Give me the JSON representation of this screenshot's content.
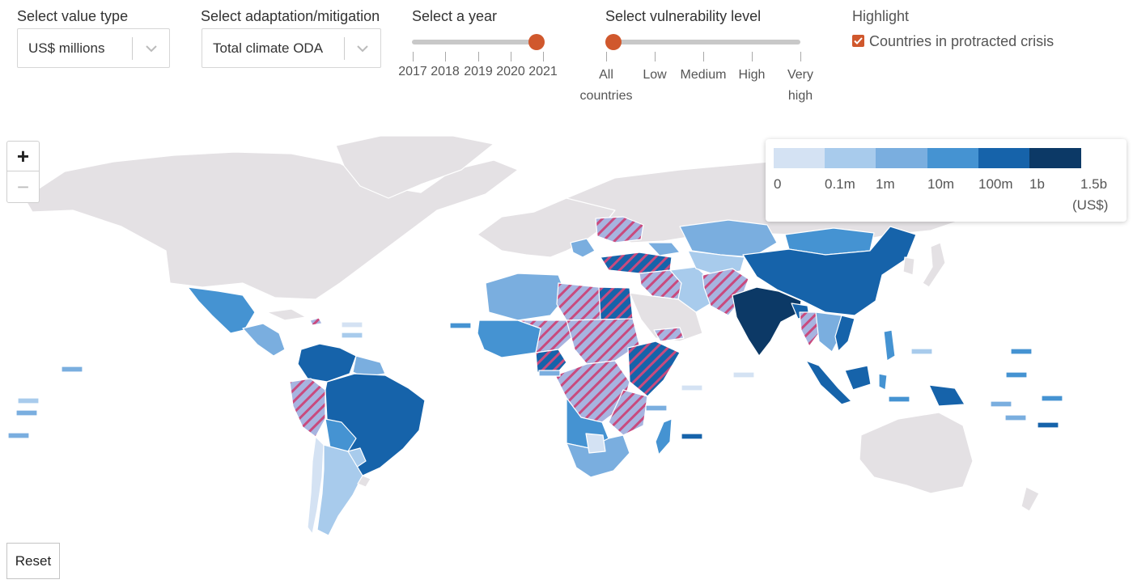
{
  "controls": {
    "value_type": {
      "title": "Select value type",
      "selected": "US$ millions"
    },
    "adaptation": {
      "title": "Select adaptation/mitigation",
      "selected": "Total climate ODA"
    },
    "year": {
      "title": "Select a year",
      "ticks": [
        "2017",
        "2018",
        "2019",
        "2020",
        "2021"
      ],
      "selected": "2021"
    },
    "vulnerability": {
      "title": "Select vulnerability level",
      "ticks": [
        "All countries",
        "Low",
        "Medium",
        "High",
        "Very high"
      ],
      "tick_lines": [
        [
          "All",
          "countries"
        ],
        [
          "Low"
        ],
        [
          "Medium"
        ],
        [
          "High"
        ],
        [
          "Very",
          "high"
        ]
      ],
      "selected": "All countries"
    },
    "highlight": {
      "title": "Highlight",
      "checkbox_label": "Countries in protracted crisis",
      "checked": true
    }
  },
  "zoom": {
    "in_label": "+",
    "out_label": "−"
  },
  "legend": {
    "labels": [
      "0",
      "0.1m",
      "1m",
      "10m",
      "100m",
      "1b",
      "1.5b"
    ],
    "unit": "(US$)",
    "colors": [
      "#d4e2f3",
      "#a8cbec",
      "#7aaedf",
      "#4593d2",
      "#1663aa",
      "#0c3966"
    ]
  },
  "map": {
    "no_data_color": "#e4e1e4",
    "hatch_color": "#c94a7e",
    "protracted_crisis_fill": "#a7b4e0"
  },
  "reset_label": "Reset",
  "colors": {
    "accent": "#d0582d"
  }
}
